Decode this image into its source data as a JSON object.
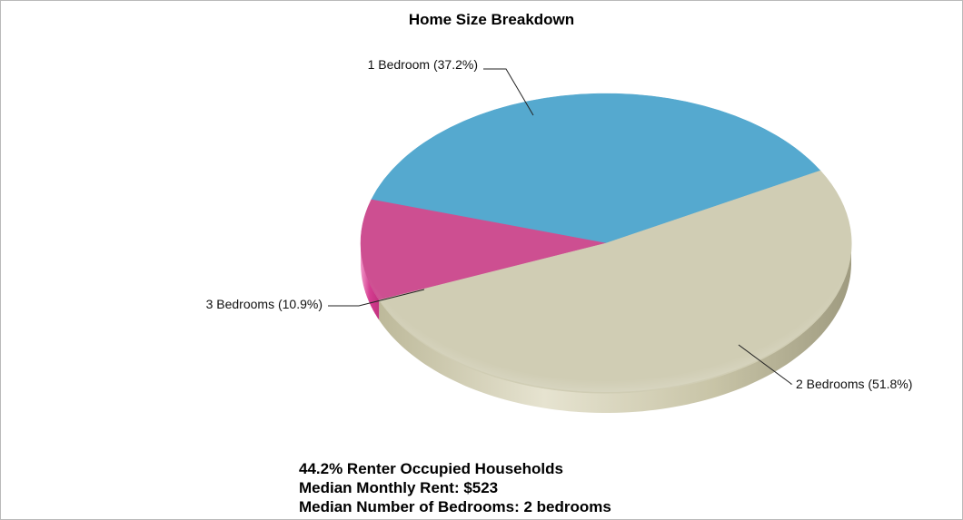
{
  "chart_data": {
    "type": "pie",
    "title": "Home Size Breakdown",
    "slices": [
      {
        "label": "1 Bedroom (37.2%)",
        "value": 37.2,
        "color": "#55a9cf"
      },
      {
        "label": "2 Bedrooms (51.8%)",
        "value": 51.8,
        "color": "#d0cdb4"
      },
      {
        "label": "3 Bedrooms (10.9%)",
        "value": 10.9,
        "color": "#cd4f91"
      }
    ]
  },
  "stats": {
    "renter_occupied": "44.2% Renter Occupied Households",
    "median_rent": "Median Monthly Rent: $523",
    "median_bedrooms": "Median Number of Bedrooms: 2 bedrooms"
  }
}
